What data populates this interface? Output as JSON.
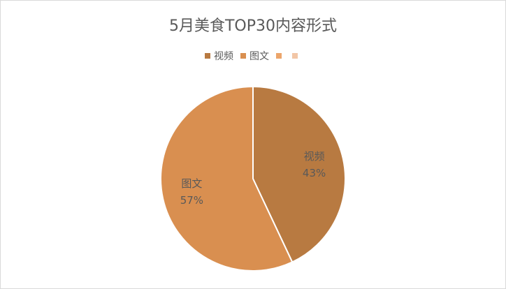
{
  "chart_data": {
    "type": "pie",
    "title": "5月美食TOP30内容形式",
    "categories": [
      "视频",
      "图文",
      null,
      null
    ],
    "values": [
      43,
      57,
      0,
      0
    ],
    "value_labels": [
      "43%",
      "57%",
      null,
      null
    ],
    "colors": [
      "#b87a41",
      "#d98f50",
      "#eca56b",
      "#f2c6a6"
    ],
    "legend": "top"
  }
}
